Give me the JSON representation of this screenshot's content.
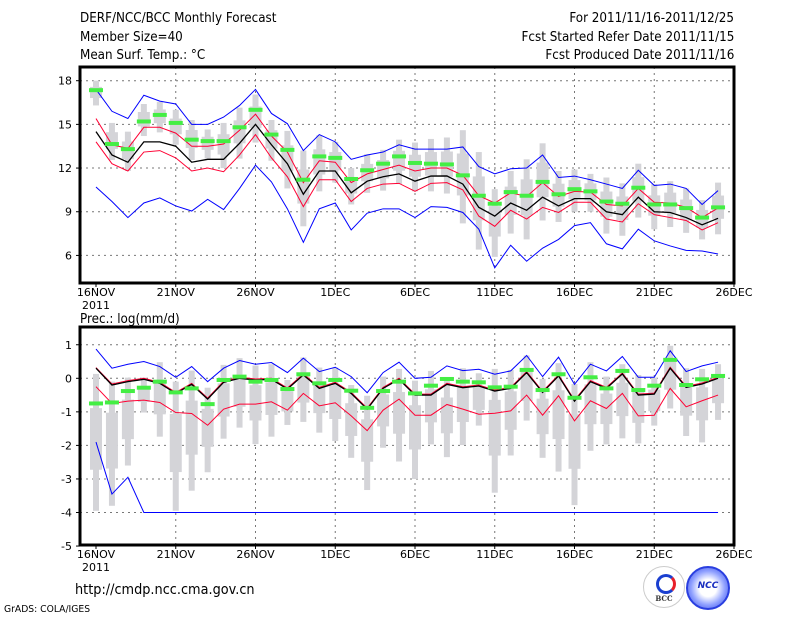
{
  "header": {
    "title": "DERF/NCC/BCC Monthly Forecast",
    "member_size": "Member Size=40",
    "variable": "Mean Surf. Temp.: °C",
    "period": "For 2011/11/16-2011/12/25",
    "started": "Fcst Started Refer Date 2011/11/15",
    "produced": "Fcst Produced Date 2011/11/16"
  },
  "footer": {
    "url": "http://cmdp.ncc.cma.gov.cn",
    "credit": "GrADS: COLA/IGES",
    "logos": [
      "BCC",
      "NCC"
    ]
  },
  "colors": {
    "max_min": "#0000ff",
    "spread": "#ff0033",
    "mean": "#000000",
    "obs": "#44ee44",
    "range": "#d4d4d8"
  },
  "chart_data": [
    {
      "type": "line",
      "title": "Mean Surf. Temp.: °C",
      "xlabel": "",
      "ylabel": "",
      "x_tick_labels": [
        "16NOV",
        "21NOV",
        "26NOV",
        "1DEC",
        "6DEC",
        "11DEC",
        "16DEC",
        "21DEC",
        "26DEC"
      ],
      "x_year_label": "2011",
      "y_ticks": [
        6,
        9,
        12,
        15,
        18
      ],
      "ylim": [
        4,
        19
      ],
      "days": 40,
      "grid": true,
      "series": [
        {
          "name": "max",
          "color": "#0000ff",
          "values": [
            17.4,
            15.9,
            15.4,
            17.0,
            16.6,
            16.4,
            15.0,
            15.0,
            15.5,
            16.3,
            17.4,
            15.75,
            15.05,
            13.2,
            14.3,
            13.8,
            12.6,
            12.9,
            13.1,
            13.6,
            13.3,
            13.3,
            13.3,
            13.45,
            12.1,
            11.6,
            11.95,
            12.0,
            12.9,
            11.35,
            11.45,
            11.2,
            10.9,
            10.6,
            11.85,
            10.8,
            10.9,
            10.6,
            9.5,
            10.45
          ]
        },
        {
          "name": "upper",
          "color": "#ff0033",
          "values": [
            15.4,
            13.6,
            13.35,
            14.8,
            14.8,
            14.4,
            13.5,
            13.5,
            13.65,
            14.6,
            15.7,
            14.2,
            13.1,
            11.0,
            12.5,
            12.4,
            11.0,
            11.6,
            11.9,
            12.2,
            11.8,
            12.0,
            12.0,
            11.5,
            10.1,
            9.6,
            10.3,
            10.05,
            11.0,
            10.05,
            10.4,
            10.35,
            9.5,
            9.4,
            10.6,
            9.65,
            9.6,
            9.3,
            8.6,
            9.25
          ]
        },
        {
          "name": "mean",
          "color": "#000000",
          "values": [
            14.5,
            12.9,
            12.4,
            13.8,
            13.8,
            13.5,
            12.4,
            12.6,
            12.6,
            13.7,
            15.0,
            13.6,
            12.3,
            10.2,
            11.8,
            11.8,
            10.3,
            11.1,
            11.4,
            11.6,
            11.1,
            11.45,
            11.46,
            10.9,
            9.3,
            8.7,
            9.6,
            9.1,
            10.0,
            9.4,
            9.9,
            9.9,
            9.0,
            8.8,
            10.0,
            9.0,
            8.95,
            8.6,
            8.1,
            8.55
          ]
        },
        {
          "name": "lower",
          "color": "#ff0033",
          "values": [
            13.8,
            12.3,
            11.8,
            13.1,
            13.2,
            12.7,
            11.8,
            12.0,
            11.75,
            12.9,
            14.3,
            12.7,
            11.4,
            9.35,
            11.2,
            11.2,
            9.7,
            10.6,
            10.9,
            10.95,
            10.4,
            10.95,
            11.0,
            10.5,
            8.7,
            8.0,
            9.1,
            8.5,
            9.3,
            8.95,
            9.65,
            9.65,
            8.5,
            8.3,
            9.55,
            8.8,
            8.6,
            8.4,
            7.75,
            8.25
          ]
        },
        {
          "name": "min",
          "color": "#0000ff",
          "values": [
            10.7,
            9.7,
            8.6,
            9.6,
            9.95,
            9.4,
            9.05,
            9.85,
            9.15,
            10.6,
            12.2,
            11.05,
            9.2,
            6.9,
            9.2,
            9.6,
            7.75,
            8.9,
            9.2,
            9.2,
            8.6,
            9.35,
            9.3,
            8.95,
            7.8,
            5.15,
            6.7,
            5.6,
            6.5,
            7.1,
            8.05,
            8.25,
            6.8,
            6.45,
            7.8,
            7.0,
            6.65,
            6.35,
            6.3,
            6.1
          ]
        },
        {
          "name": "observed",
          "color": "#44ee44",
          "values": [
            17.35,
            13.65,
            13.3,
            15.2,
            15.65,
            15.1,
            13.95,
            13.85,
            13.85,
            14.8,
            16.0,
            14.3,
            13.25,
            11.2,
            12.8,
            12.7,
            11.25,
            11.85,
            12.3,
            12.8,
            12.35,
            12.3,
            12.25,
            11.5,
            10.1,
            9.55,
            10.35,
            10.1,
            11.05,
            10.2,
            10.55,
            10.4,
            9.7,
            9.55,
            10.65,
            9.5,
            9.5,
            9.25,
            8.6,
            9.3
          ]
        }
      ],
      "range_high": [
        18.0,
        15.1,
        14.5,
        16.4,
        16.55,
        16.0,
        15.3,
        14.65,
        15.1,
        16.15,
        17.05,
        15.3,
        14.55,
        13.2,
        14.25,
        13.8,
        12.0,
        12.95,
        13.25,
        13.95,
        13.75,
        14.0,
        14.1,
        14.6,
        13.1,
        10.55,
        11.8,
        12.6,
        13.7,
        11.8,
        11.9,
        11.6,
        11.35,
        10.95,
        12.3,
        10.9,
        11.1,
        10.6,
        9.8,
        11.0
      ],
      "range_low": [
        16.3,
        12.55,
        11.8,
        14.2,
        14.45,
        13.6,
        12.55,
        12.65,
        12.0,
        12.65,
        13.75,
        12.5,
        10.6,
        8.0,
        10.4,
        11.0,
        9.5,
        10.3,
        10.45,
        10.9,
        10.4,
        10.4,
        10.25,
        8.2,
        6.4,
        5.9,
        7.5,
        7.1,
        8.4,
        8.3,
        9.0,
        9.0,
        7.5,
        7.35,
        8.6,
        7.8,
        7.95,
        7.55,
        7.1,
        7.45
      ]
    },
    {
      "type": "line",
      "title": "Prec.: log(mm/d)",
      "xlabel": "",
      "ylabel": "",
      "x_tick_labels": [
        "16NOV",
        "21NOV",
        "26NOV",
        "1DEC",
        "6DEC",
        "11DEC",
        "16DEC",
        "21DEC",
        "26DEC"
      ],
      "x_year_label": "2011",
      "y_ticks": [
        1,
        0,
        -1,
        -2,
        -3,
        -4,
        -5
      ],
      "ylim": [
        -5,
        1.5
      ],
      "days": 40,
      "grid": true,
      "series": [
        {
          "name": "max",
          "color": "#0000ff",
          "values": [
            0.87,
            0.3,
            0.42,
            0.5,
            0.35,
            0.03,
            0.35,
            -0.1,
            0.3,
            0.53,
            0.42,
            0.47,
            0.17,
            0.6,
            0.2,
            0.33,
            0.05,
            -0.43,
            0.17,
            0.48,
            0.0,
            0.03,
            0.37,
            0.23,
            0.27,
            0.12,
            0.22,
            0.68,
            0.05,
            0.63,
            -0.18,
            0.42,
            0.22,
            0.65,
            0.03,
            0.03,
            0.82,
            0.2,
            0.37,
            0.48
          ]
        },
        {
          "name": "upper",
          "color": "#ff0033",
          "values": [
            0.32,
            -0.17,
            -0.07,
            0.0,
            -0.12,
            -0.42,
            -0.15,
            -0.59,
            -0.09,
            0.03,
            -0.02,
            0.0,
            -0.29,
            0.13,
            -0.27,
            -0.12,
            -0.42,
            -0.89,
            -0.27,
            0.0,
            -0.47,
            -0.47,
            -0.15,
            -0.25,
            -0.2,
            -0.35,
            -0.27,
            0.2,
            -0.39,
            0.1,
            -0.65,
            -0.07,
            -0.27,
            0.16,
            -0.47,
            -0.44,
            0.33,
            -0.24,
            -0.14,
            0.03
          ]
        },
        {
          "name": "mean",
          "color": "#000000",
          "values": [
            0.3,
            -0.2,
            -0.1,
            -0.03,
            -0.15,
            -0.45,
            -0.18,
            -0.62,
            -0.12,
            0.0,
            -0.05,
            -0.03,
            -0.32,
            0.1,
            -0.3,
            -0.15,
            -0.45,
            -0.92,
            -0.3,
            -0.03,
            -0.5,
            -0.5,
            -0.18,
            -0.28,
            -0.23,
            -0.38,
            -0.3,
            0.17,
            -0.42,
            0.07,
            -0.68,
            -0.1,
            -0.3,
            0.13,
            -0.5,
            -0.47,
            0.3,
            -0.27,
            -0.17,
            0.0
          ]
        },
        {
          "name": "lower",
          "color": "#ff0033",
          "values": [
            -0.25,
            -0.75,
            -0.68,
            -0.65,
            -0.72,
            -1.02,
            -1.05,
            -1.4,
            -0.92,
            -0.77,
            -0.77,
            -0.7,
            -0.95,
            -0.45,
            -0.82,
            -0.73,
            -1.12,
            -1.56,
            -0.95,
            -0.62,
            -1.1,
            -1.1,
            -0.78,
            -0.92,
            -1.07,
            -1.04,
            -0.97,
            -0.5,
            -1.1,
            -0.52,
            -1.27,
            -0.67,
            -0.9,
            -0.45,
            -1.12,
            -1.1,
            -0.3,
            -0.85,
            -0.67,
            -0.5
          ]
        },
        {
          "name": "min",
          "color": "#0000ff",
          "values": [
            -1.9,
            -3.45,
            -2.95,
            -4,
            -4,
            -4,
            -4,
            -4,
            -4,
            -4,
            -4,
            -4,
            -4,
            -4,
            -4,
            -4,
            -4,
            -4,
            -4,
            -4,
            -4,
            -4,
            -4,
            -4,
            -4,
            -4,
            -4,
            -4,
            -4,
            -4,
            -4,
            -4,
            -4,
            -4,
            -4,
            -4,
            -4,
            -4,
            -4,
            -4
          ]
        },
        {
          "name": "observed",
          "color": "#44ee44",
          "values": [
            -0.75,
            -0.72,
            -0.38,
            -0.28,
            -0.1,
            -0.42,
            -0.3,
            -0.77,
            -0.05,
            0.05,
            -0.1,
            -0.05,
            -0.32,
            0.12,
            -0.15,
            -0.05,
            -0.37,
            -0.88,
            -0.38,
            -0.1,
            -0.45,
            -0.22,
            -0.02,
            -0.1,
            -0.12,
            -0.27,
            -0.25,
            0.25,
            -0.35,
            0.12,
            -0.58,
            0.03,
            -0.3,
            0.22,
            -0.35,
            -0.22,
            0.55,
            -0.2,
            -0.03,
            0.07
          ]
        }
      ],
      "range_high": [
        0.13,
        -0.1,
        0.02,
        0.02,
        0.48,
        -0.1,
        0.23,
        -0.28,
        0.4,
        0.6,
        0.38,
        0.42,
        -0.05,
        0.62,
        0.32,
        0.32,
        -0.2,
        -0.52,
        0.05,
        0.28,
        -0.07,
        0.22,
        0.02,
        0.3,
        0.15,
        0.28,
        0.25,
        0.68,
        -0.02,
        0.45,
        -0.17,
        0.48,
        0.05,
        0.42,
        0.1,
        0.02,
        0.97,
        0.3,
        0.28,
        0.42
      ],
      "range_low": [
        -3.95,
        -3.8,
        -2.6,
        -1.02,
        -1.74,
        -3.95,
        -3.35,
        -2.8,
        -1.8,
        -1.47,
        -1.96,
        -1.74,
        -1.39,
        -1.3,
        -1.62,
        -1.87,
        -2.37,
        -3.33,
        -2.07,
        -2.48,
        -3.0,
        -1.97,
        -2.35,
        -1.99,
        -1.41,
        -3.41,
        -2.3,
        -1.26,
        -2.37,
        -2.78,
        -3.78,
        -2.16,
        -1.97,
        -1.79,
        -1.94,
        -1.41,
        -0.9,
        -1.72,
        -1.91,
        -1.24
      ]
    }
  ]
}
